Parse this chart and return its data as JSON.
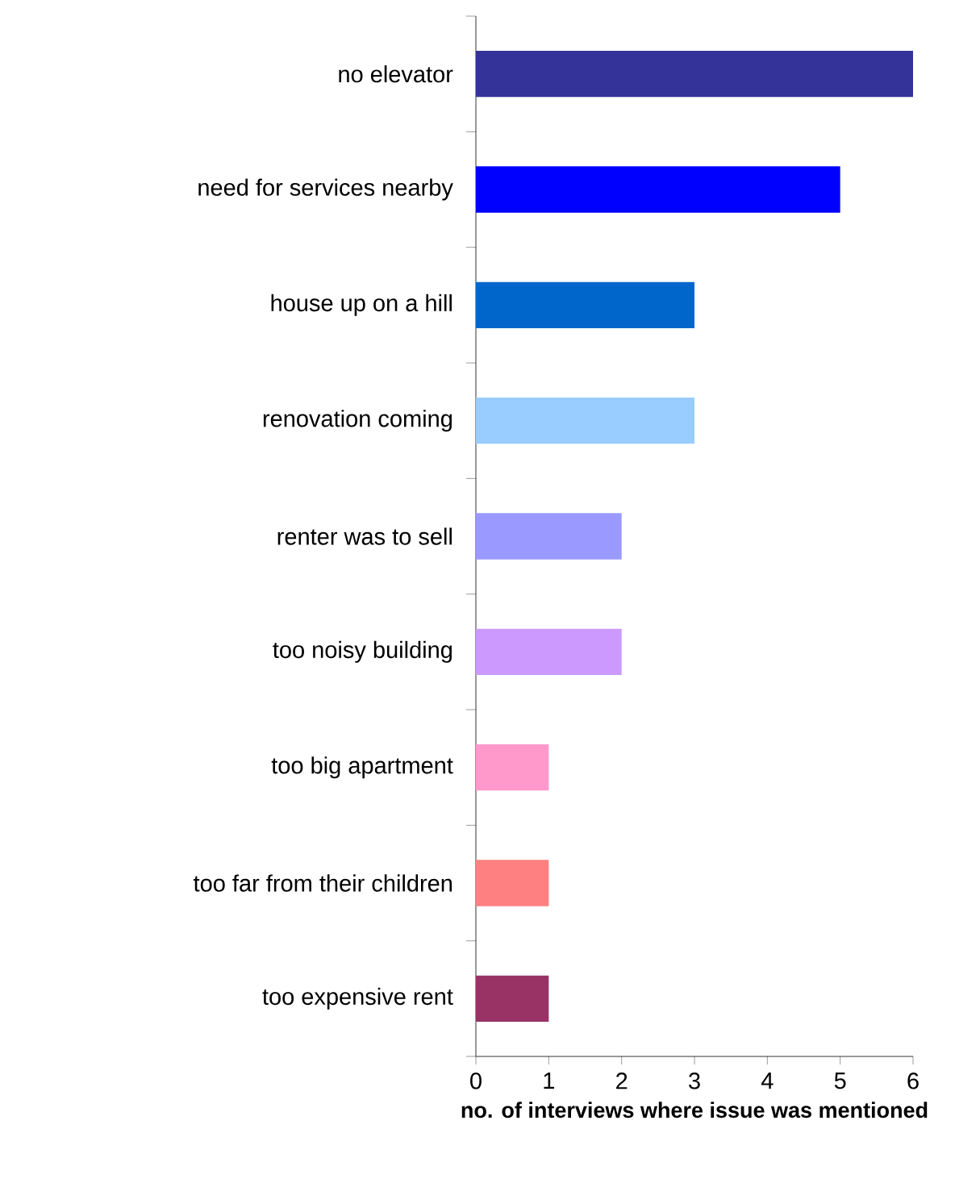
{
  "chart_data": {
    "type": "bar",
    "orientation": "horizontal",
    "xlabel": "no. of interviews where issue was mentioned",
    "categories": [
      "no elevator",
      "need for services nearby",
      "house up on a hill",
      "renovation coming",
      "renter was to sell",
      "too noisy building",
      "too big apartment",
      "too far from their children",
      "too expensive rent"
    ],
    "values": [
      6,
      5,
      3,
      3,
      2,
      2,
      1,
      1,
      1
    ],
    "colors": [
      "#333399",
      "#0000ff",
      "#0066cc",
      "#99ccff",
      "#9999ff",
      "#cc99ff",
      "#ff99cc",
      "#ff8080",
      "#993366"
    ],
    "xlim": [
      0,
      6
    ],
    "xticks": [
      0,
      1,
      2,
      3,
      4,
      5,
      6
    ]
  }
}
